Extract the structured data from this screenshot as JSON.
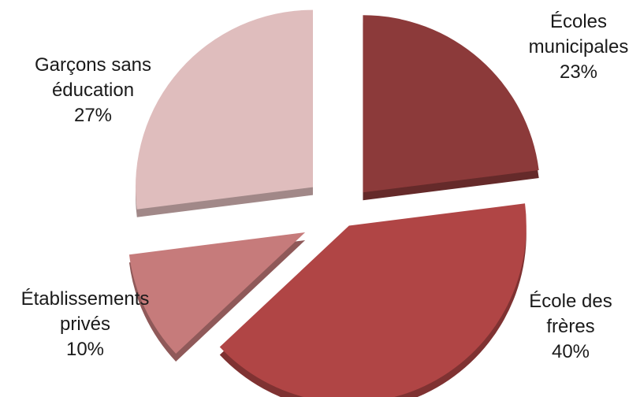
{
  "chart_data": {
    "type": "pie",
    "style": "exploded-3d",
    "slices": [
      {
        "label": "Écoles municipales",
        "label_lines": [
          "Écoles",
          "municipales"
        ],
        "value": 23,
        "value_label": "23%",
        "color": "#8c3a3a"
      },
      {
        "label": "École des frères",
        "label_lines": [
          "École des",
          "frères"
        ],
        "value": 40,
        "value_label": "40%",
        "color": "#b04545"
      },
      {
        "label": "Établissements privés",
        "label_lines": [
          "Établissements",
          "privés"
        ],
        "value": 10,
        "value_label": "10%",
        "color": "#c67b7b"
      },
      {
        "label": "Garçons sans éducation",
        "label_lines": [
          "Garçons sans",
          "éducation"
        ],
        "value": 27,
        "value_label": "27%",
        "color": "#dfbdbd"
      }
    ]
  }
}
